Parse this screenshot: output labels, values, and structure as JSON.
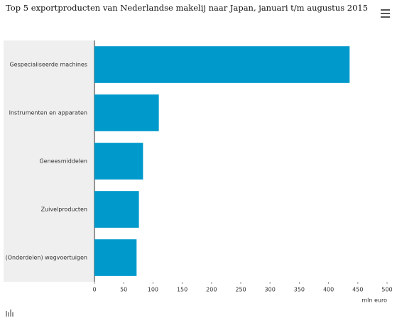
{
  "chart_data": {
    "type": "bar",
    "orientation": "horizontal",
    "title": "Top 5 exportproducten van Nederlandse makelij naar Japan, januari t/m augustus 2015",
    "categories": [
      "Gespecialiseerde machines",
      "Instrumenten en apparaten",
      "Geneesmiddelen",
      "Zuivelproducten",
      "(Onderdelen) wegvoertuigen"
    ],
    "values": [
      436,
      110,
      83,
      76,
      72
    ],
    "color": "#0099cc",
    "xlabel": "mln euro",
    "xlim": [
      0,
      500
    ],
    "xticks": [
      0,
      50,
      100,
      150,
      200,
      250,
      300,
      350,
      400,
      450,
      500
    ]
  }
}
